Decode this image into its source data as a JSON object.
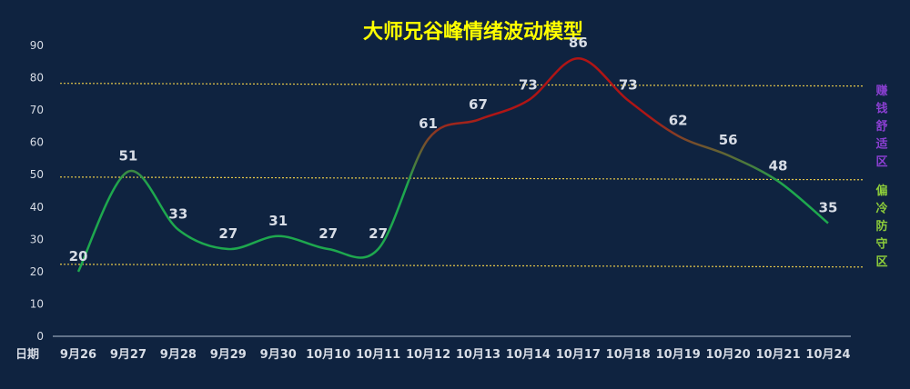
{
  "colors": {
    "background": "#0f2340",
    "title": "#ffff00",
    "text": "#d8dde6",
    "axis": "#7f8ea3",
    "ref_line": "#e6c84a",
    "line_cold": "#1ea84e",
    "line_hot": "#b01515",
    "zone_comfort": "#8a3fd1",
    "zone_cold": "#8ccc3a"
  },
  "chart_data": {
    "type": "line",
    "title": "大师兄谷峰情绪波动模型",
    "xlabel": "日期",
    "ylabel": "",
    "ylim": [
      0,
      90
    ],
    "yticks": [
      0,
      10,
      20,
      30,
      40,
      50,
      60,
      70,
      80,
      90
    ],
    "categories": [
      "9月26",
      "9月27",
      "9月28",
      "9月29",
      "9月30",
      "10月10",
      "10月11",
      "10月12",
      "10月13",
      "10月14",
      "10月17",
      "10月18",
      "10月19",
      "10月20",
      "10月21",
      "10月24"
    ],
    "values": [
      20,
      51,
      33,
      27,
      31,
      27,
      27,
      61,
      67,
      73,
      86,
      73,
      62,
      56,
      48,
      35
    ],
    "reference_lines": [
      78,
      49,
      22
    ],
    "zones": [
      {
        "label": "赚钱舒适区",
        "chars": [
          "赚",
          "钱",
          "舒",
          "适",
          "区"
        ]
      },
      {
        "label": "偏冷防守区",
        "chars": [
          "偏",
          "冷",
          "防",
          "守",
          "区"
        ]
      }
    ],
    "grid": false
  }
}
